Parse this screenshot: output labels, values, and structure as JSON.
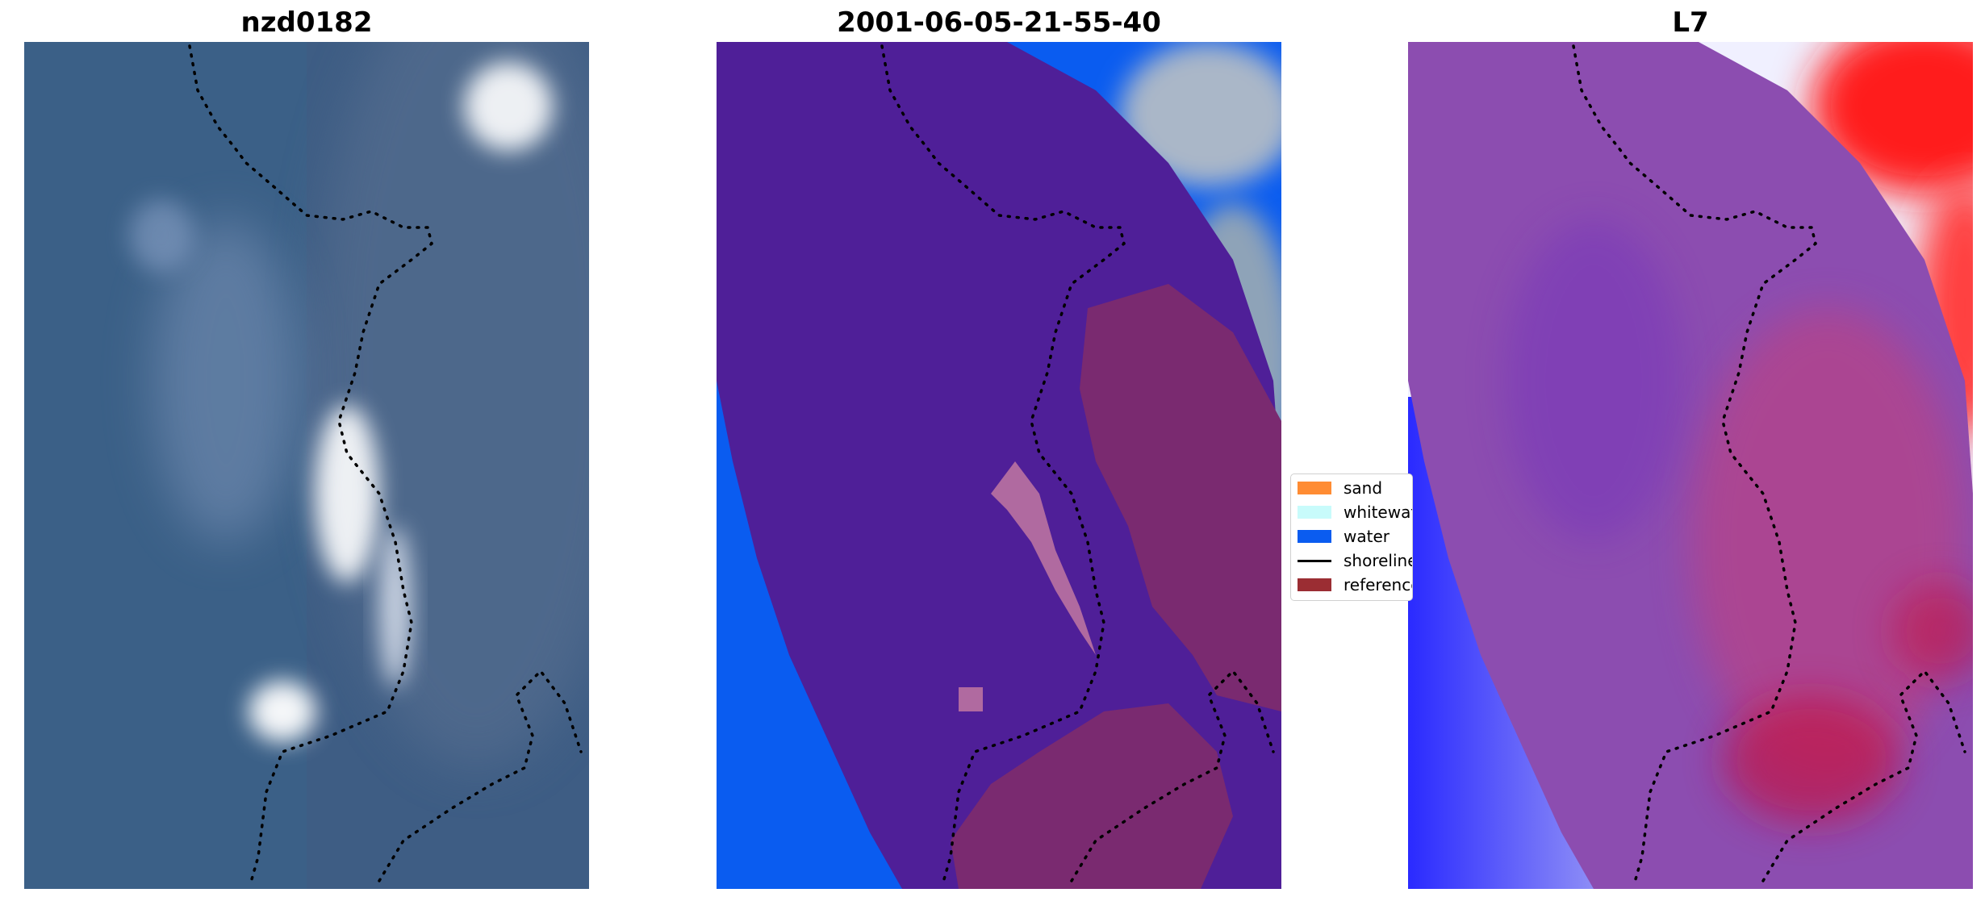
{
  "panels": [
    {
      "title": "nzd0182"
    },
    {
      "title": "2001-06-05-21-55-40"
    },
    {
      "title": "L7"
    }
  ],
  "legend": {
    "items": [
      {
        "label": "sand",
        "color": "#ff8c33",
        "kind": "patch"
      },
      {
        "label": "whitewater",
        "color": "#c8fbfb",
        "kind": "patch"
      },
      {
        "label": "water",
        "color": "#0a5cf0",
        "kind": "patch"
      },
      {
        "label": "shoreline",
        "color": "#000000",
        "kind": "line"
      },
      {
        "label": "reference",
        "color": "#9b2d33",
        "kind": "patch"
      }
    ]
  },
  "colors": {
    "image_water": "#3b5a80",
    "mask_purple": "#4f1f98",
    "mask_water": "#0a5cf0",
    "index_purple": "#8c4db0",
    "index_red": "#ff2020",
    "index_blue": "#3030ff"
  }
}
